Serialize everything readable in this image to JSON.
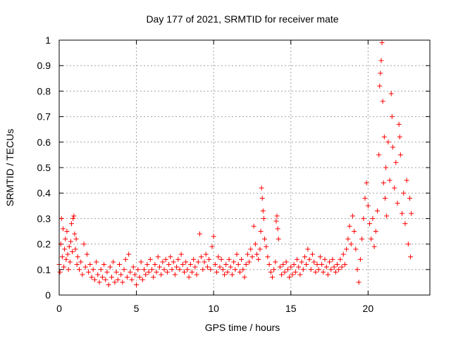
{
  "chart_data": {
    "type": "scatter",
    "title": "Day 177 of 2021, SRMTID for receiver mate",
    "xlabel": "GPS time / hours",
    "ylabel": "SRMTID / TECUs",
    "xlim": [
      0,
      24
    ],
    "ylim": [
      0,
      1
    ],
    "xticks": [
      0,
      5,
      10,
      15,
      20
    ],
    "xtick_labels": [
      "0",
      "5",
      "10",
      "15",
      "20"
    ],
    "yticks": [
      0,
      0.1,
      0.2,
      0.3,
      0.4,
      0.5,
      0.6,
      0.7,
      0.8,
      0.9,
      1
    ],
    "ytick_labels": [
      "0",
      "0.1",
      "0.2",
      "0.3",
      "0.4",
      "0.5",
      "0.6",
      "0.7",
      "0.8",
      "0.9",
      "1"
    ],
    "grid": true,
    "marker": "+",
    "color": "#ff0000",
    "series": [
      {
        "name": "mate",
        "points": [
          [
            0.0,
            0.12
          ],
          [
            0.05,
            0.09
          ],
          [
            0.1,
            0.2
          ],
          [
            0.15,
            0.3
          ],
          [
            0.2,
            0.15
          ],
          [
            0.25,
            0.26
          ],
          [
            0.3,
            0.11
          ],
          [
            0.35,
            0.18
          ],
          [
            0.4,
            0.22
          ],
          [
            0.45,
            0.14
          ],
          [
            0.5,
            0.25
          ],
          [
            0.55,
            0.16
          ],
          [
            0.6,
            0.1
          ],
          [
            0.65,
            0.19
          ],
          [
            0.7,
            0.13
          ],
          [
            0.75,
            0.21
          ],
          [
            0.8,
            0.28
          ],
          [
            0.85,
            0.17
          ],
          [
            0.9,
            0.3
          ],
          [
            0.95,
            0.31
          ],
          [
            1.0,
            0.24
          ],
          [
            1.05,
            0.18
          ],
          [
            1.1,
            0.22
          ],
          [
            1.15,
            0.12
          ],
          [
            1.2,
            0.15
          ],
          [
            1.3,
            0.1
          ],
          [
            1.4,
            0.13
          ],
          [
            1.5,
            0.08
          ],
          [
            1.6,
            0.2
          ],
          [
            1.7,
            0.11
          ],
          [
            1.8,
            0.16
          ],
          [
            1.9,
            0.09
          ],
          [
            2.0,
            0.12
          ],
          [
            2.1,
            0.07
          ],
          [
            2.2,
            0.1
          ],
          [
            2.3,
            0.06
          ],
          [
            2.4,
            0.13
          ],
          [
            2.5,
            0.08
          ],
          [
            2.6,
            0.05
          ],
          [
            2.7,
            0.1
          ],
          [
            2.8,
            0.07
          ],
          [
            2.9,
            0.12
          ],
          [
            3.0,
            0.06
          ],
          [
            3.1,
            0.09
          ],
          [
            3.2,
            0.04
          ],
          [
            3.3,
            0.11
          ],
          [
            3.4,
            0.07
          ],
          [
            3.5,
            0.13
          ],
          [
            3.6,
            0.05
          ],
          [
            3.7,
            0.09
          ],
          [
            3.8,
            0.06
          ],
          [
            3.9,
            0.12
          ],
          [
            4.0,
            0.08
          ],
          [
            4.1,
            0.05
          ],
          [
            4.2,
            0.1
          ],
          [
            4.3,
            0.14
          ],
          [
            4.4,
            0.07
          ],
          [
            4.5,
            0.16
          ],
          [
            4.6,
            0.09
          ],
          [
            4.7,
            0.06
          ],
          [
            4.8,
            0.11
          ],
          [
            4.9,
            0.08
          ],
          [
            5.0,
            0.04
          ],
          [
            5.1,
            0.1
          ],
          [
            5.2,
            0.07
          ],
          [
            5.3,
            0.13
          ],
          [
            5.4,
            0.06
          ],
          [
            5.5,
            0.1
          ],
          [
            5.6,
            0.08
          ],
          [
            5.7,
            0.12
          ],
          [
            5.8,
            0.09
          ],
          [
            5.9,
            0.14
          ],
          [
            6.0,
            0.1
          ],
          [
            6.1,
            0.07
          ],
          [
            6.2,
            0.12
          ],
          [
            6.3,
            0.09
          ],
          [
            6.4,
            0.15
          ],
          [
            6.5,
            0.11
          ],
          [
            6.6,
            0.08
          ],
          [
            6.7,
            0.13
          ],
          [
            6.8,
            0.1
          ],
          [
            6.9,
            0.14
          ],
          [
            7.0,
            0.09
          ],
          [
            7.1,
            0.12
          ],
          [
            7.2,
            0.15
          ],
          [
            7.3,
            0.1
          ],
          [
            7.4,
            0.13
          ],
          [
            7.5,
            0.08
          ],
          [
            7.6,
            0.11
          ],
          [
            7.7,
            0.14
          ],
          [
            7.8,
            0.1
          ],
          [
            7.9,
            0.16
          ],
          [
            8.0,
            0.12
          ],
          [
            8.1,
            0.09
          ],
          [
            8.2,
            0.13
          ],
          [
            8.3,
            0.1
          ],
          [
            8.4,
            0.07
          ],
          [
            8.5,
            0.12
          ],
          [
            8.6,
            0.09
          ],
          [
            8.7,
            0.14
          ],
          [
            8.8,
            0.11
          ],
          [
            8.9,
            0.08
          ],
          [
            9.0,
            0.13
          ],
          [
            9.1,
            0.24
          ],
          [
            9.2,
            0.15
          ],
          [
            9.3,
            0.1
          ],
          [
            9.4,
            0.13
          ],
          [
            9.5,
            0.16
          ],
          [
            9.6,
            0.11
          ],
          [
            9.7,
            0.14
          ],
          [
            9.8,
            0.1
          ],
          [
            9.9,
            0.19
          ],
          [
            10.0,
            0.23
          ],
          [
            10.1,
            0.12
          ],
          [
            10.2,
            0.09
          ],
          [
            10.3,
            0.15
          ],
          [
            10.4,
            0.11
          ],
          [
            10.5,
            0.14
          ],
          [
            10.6,
            0.1
          ],
          [
            10.7,
            0.08
          ],
          [
            10.8,
            0.12
          ],
          [
            10.9,
            0.09
          ],
          [
            11.0,
            0.14
          ],
          [
            11.1,
            0.11
          ],
          [
            11.2,
            0.08
          ],
          [
            11.3,
            0.13
          ],
          [
            11.4,
            0.1
          ],
          [
            11.5,
            0.16
          ],
          [
            11.6,
            0.12
          ],
          [
            11.7,
            0.09
          ],
          [
            11.8,
            0.14
          ],
          [
            11.9,
            0.1
          ],
          [
            12.0,
            0.07
          ],
          [
            12.1,
            0.12
          ],
          [
            12.2,
            0.16
          ],
          [
            12.3,
            0.13
          ],
          [
            12.4,
            0.18
          ],
          [
            12.5,
            0.15
          ],
          [
            12.6,
            0.27
          ],
          [
            12.7,
            0.2
          ],
          [
            12.8,
            0.16
          ],
          [
            12.9,
            0.14
          ],
          [
            13.0,
            0.18
          ],
          [
            13.05,
            0.25
          ],
          [
            13.1,
            0.42
          ],
          [
            13.15,
            0.38
          ],
          [
            13.2,
            0.33
          ],
          [
            13.25,
            0.3
          ],
          [
            13.3,
            0.22
          ],
          [
            13.4,
            0.19
          ],
          [
            13.5,
            0.15
          ],
          [
            13.6,
            0.12
          ],
          [
            13.7,
            0.09
          ],
          [
            13.8,
            0.07
          ],
          [
            13.9,
            0.1
          ],
          [
            14.0,
            0.13
          ],
          [
            14.05,
            0.29
          ],
          [
            14.1,
            0.31
          ],
          [
            14.15,
            0.26
          ],
          [
            14.2,
            0.22
          ],
          [
            14.3,
            0.11
          ],
          [
            14.4,
            0.08
          ],
          [
            14.5,
            0.12
          ],
          [
            14.6,
            0.09
          ],
          [
            14.7,
            0.13
          ],
          [
            14.8,
            0.1
          ],
          [
            14.9,
            0.07
          ],
          [
            15.0,
            0.11
          ],
          [
            15.1,
            0.08
          ],
          [
            15.2,
            0.12
          ],
          [
            15.3,
            0.09
          ],
          [
            15.4,
            0.14
          ],
          [
            15.5,
            0.11
          ],
          [
            15.6,
            0.08
          ],
          [
            15.7,
            0.13
          ],
          [
            15.8,
            0.1
          ],
          [
            15.9,
            0.15
          ],
          [
            16.0,
            0.12
          ],
          [
            16.1,
            0.18
          ],
          [
            16.2,
            0.14
          ],
          [
            16.3,
            0.1
          ],
          [
            16.4,
            0.16
          ],
          [
            16.5,
            0.13
          ],
          [
            16.6,
            0.09
          ],
          [
            16.7,
            0.12
          ],
          [
            16.8,
            0.1
          ],
          [
            16.9,
            0.15
          ],
          [
            17.0,
            0.12
          ],
          [
            17.1,
            0.09
          ],
          [
            17.2,
            0.14
          ],
          [
            17.3,
            0.11
          ],
          [
            17.4,
            0.08
          ],
          [
            17.5,
            0.13
          ],
          [
            17.6,
            0.1
          ],
          [
            17.7,
            0.14
          ],
          [
            17.8,
            0.11
          ],
          [
            17.9,
            0.09
          ],
          [
            18.0,
            0.12
          ],
          [
            18.1,
            0.1
          ],
          [
            18.2,
            0.14
          ],
          [
            18.3,
            0.11
          ],
          [
            18.4,
            0.16
          ],
          [
            18.5,
            0.12
          ],
          [
            18.6,
            0.18
          ],
          [
            18.7,
            0.22
          ],
          [
            18.8,
            0.27
          ],
          [
            18.9,
            0.2
          ],
          [
            19.0,
            0.31
          ],
          [
            19.1,
            0.25
          ],
          [
            19.2,
            0.18
          ],
          [
            19.3,
            0.1
          ],
          [
            19.4,
            0.05
          ],
          [
            19.5,
            0.14
          ],
          [
            19.6,
            0.22
          ],
          [
            19.7,
            0.3
          ],
          [
            19.8,
            0.38
          ],
          [
            19.9,
            0.44
          ],
          [
            20.0,
            0.35
          ],
          [
            20.1,
            0.28
          ],
          [
            20.2,
            0.22
          ],
          [
            20.3,
            0.3
          ],
          [
            20.4,
            0.19
          ],
          [
            20.5,
            0.25
          ],
          [
            20.6,
            0.33
          ],
          [
            20.7,
            0.55
          ],
          [
            20.75,
            0.82
          ],
          [
            20.8,
            0.87
          ],
          [
            20.85,
            0.92
          ],
          [
            20.9,
            0.99
          ],
          [
            20.95,
            0.76
          ],
          [
            21.0,
            0.44
          ],
          [
            21.05,
            0.62
          ],
          [
            21.1,
            0.38
          ],
          [
            21.15,
            0.5
          ],
          [
            21.2,
            0.31
          ],
          [
            21.3,
            0.6
          ],
          [
            21.4,
            0.45
          ],
          [
            21.5,
            0.79
          ],
          [
            21.55,
            0.7
          ],
          [
            21.6,
            0.58
          ],
          [
            21.7,
            0.42
          ],
          [
            21.8,
            0.52
          ],
          [
            21.9,
            0.36
          ],
          [
            22.0,
            0.67
          ],
          [
            22.05,
            0.62
          ],
          [
            22.1,
            0.55
          ],
          [
            22.2,
            0.32
          ],
          [
            22.3,
            0.4
          ],
          [
            22.4,
            0.28
          ],
          [
            22.5,
            0.45
          ],
          [
            22.6,
            0.2
          ],
          [
            22.7,
            0.38
          ],
          [
            22.75,
            0.15
          ],
          [
            22.8,
            0.32
          ]
        ]
      }
    ]
  }
}
